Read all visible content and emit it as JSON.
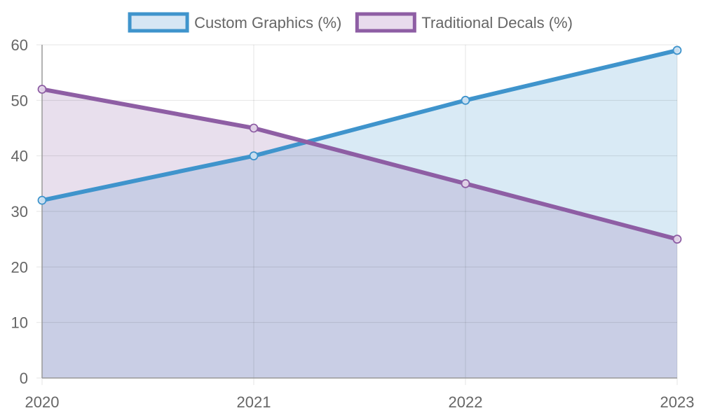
{
  "chart_data": {
    "type": "area",
    "categories": [
      "2020",
      "2021",
      "2022",
      "2023"
    ],
    "ylim": [
      0,
      60
    ],
    "yticks": [
      0,
      10,
      20,
      30,
      40,
      50,
      60
    ],
    "grid": true,
    "legend_position": "top",
    "series": [
      {
        "name": "Custom Graphics (%)",
        "values": [
          32,
          40,
          50,
          59
        ],
        "line_color": "#3f94cc",
        "fill_color": "#d6e6f4"
      },
      {
        "name": "Traditional Decals (%)",
        "values": [
          52,
          45,
          35,
          25
        ],
        "line_color": "#8e5ea4",
        "fill_color": "#e8dced"
      }
    ],
    "overlap_fill_color": "#c6cce6"
  }
}
